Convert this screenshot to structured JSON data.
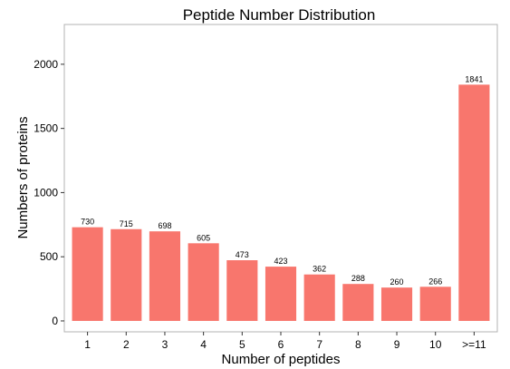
{
  "chart_data": {
    "type": "bar",
    "title": "Peptide Number Distribution",
    "xlabel": "Number of peptides",
    "ylabel": "Numbers of proteins",
    "categories": [
      "1",
      "2",
      "3",
      "4",
      "5",
      "6",
      "7",
      "8",
      "9",
      "10",
      ">=11"
    ],
    "values": [
      730,
      715,
      698,
      605,
      473,
      423,
      362,
      288,
      260,
      266,
      1841
    ],
    "ylim": [
      -85,
      2310
    ],
    "yticks": [
      0,
      500,
      1000,
      1500,
      2000
    ],
    "grid": false,
    "legend": "none",
    "bar_color": "#F8766D",
    "panel_border_color": "#b3b3b3"
  }
}
